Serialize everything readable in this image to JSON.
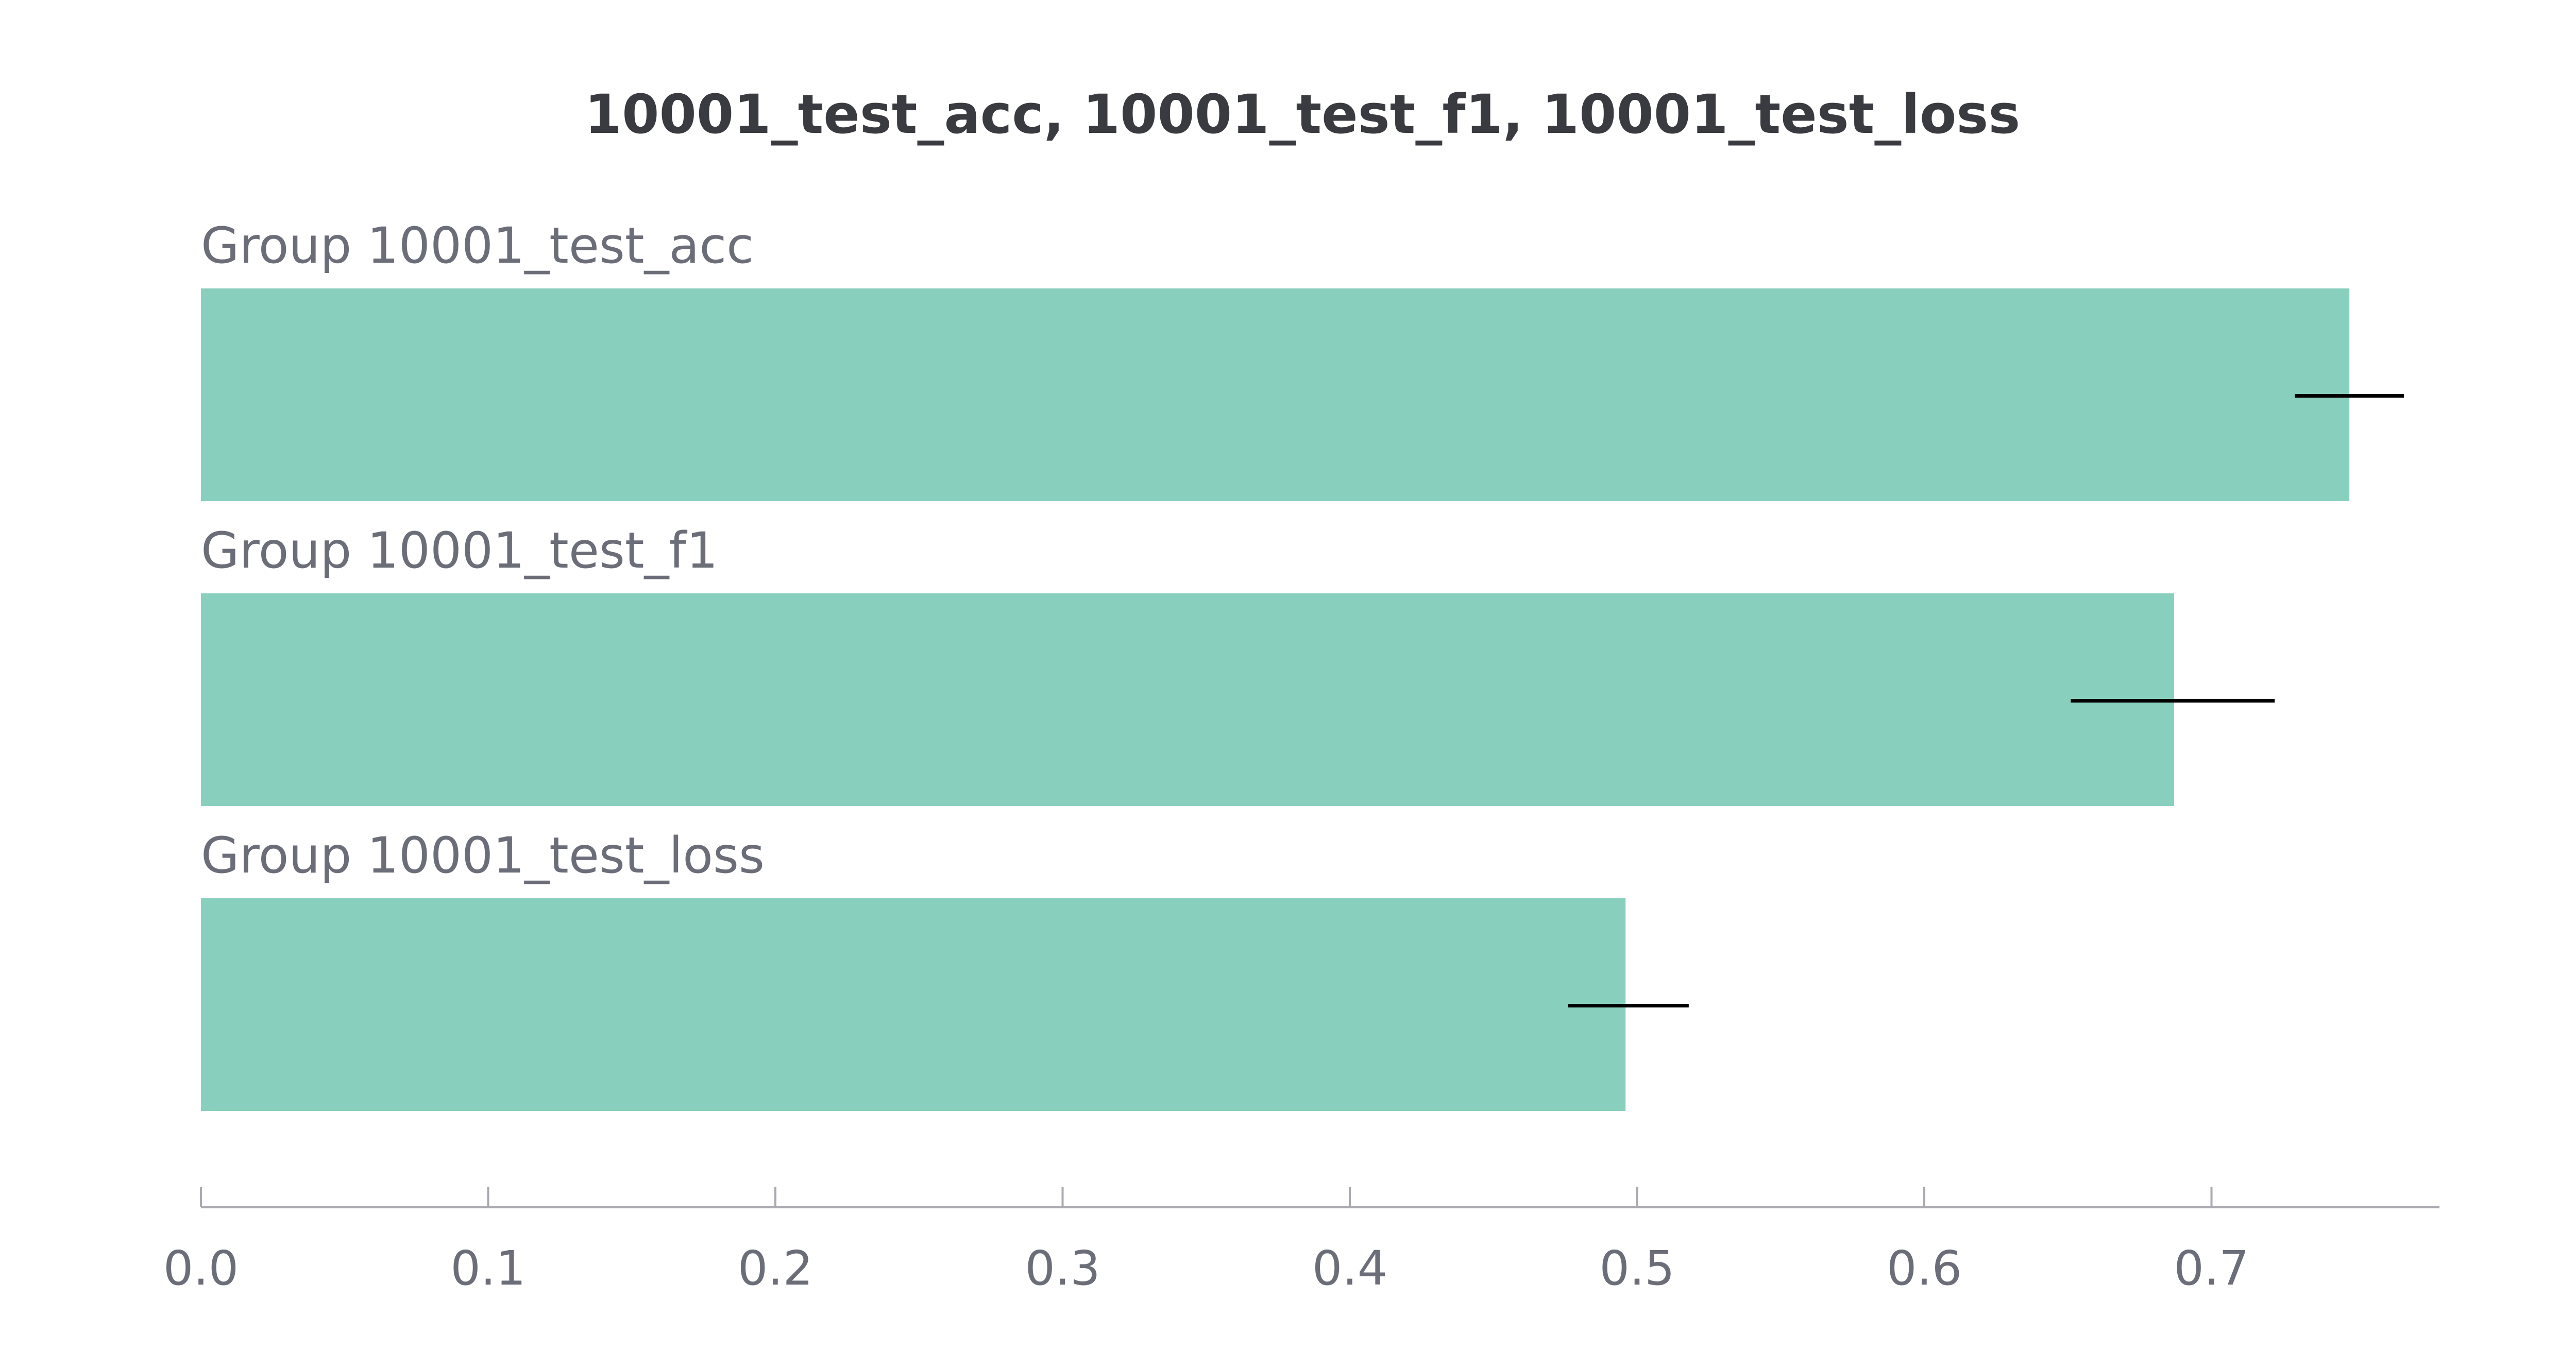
{
  "chart_data": {
    "type": "bar",
    "orientation": "horizontal",
    "title": "10001_test_acc, 10001_test_f1, 10001_test_loss",
    "group_label_prefix": "Group ",
    "categories": [
      "10001_test_acc",
      "10001_test_f1",
      "10001_test_loss"
    ],
    "values": [
      0.748,
      0.687,
      0.496
    ],
    "error_bars": [
      {
        "low": 0.729,
        "high": 0.767
      },
      {
        "low": 0.651,
        "high": 0.722
      },
      {
        "low": 0.476,
        "high": 0.518
      }
    ],
    "xlim": [
      0,
      0.78
    ],
    "xticks": [
      0,
      0.1,
      0.2,
      0.3,
      0.4,
      0.5,
      0.6,
      0.7
    ],
    "xtick_labels": [
      "0.0",
      "0.1",
      "0.2",
      "0.3",
      "0.4",
      "0.5",
      "0.6",
      "0.7"
    ],
    "xlabel": "",
    "ylabel": "",
    "grid": false,
    "legend": "none",
    "colors": {
      "bar": "#88cfbe",
      "error_bar": "#000000",
      "axis": "#a9aab0",
      "title": "#3a3b40",
      "label": "#6b6d78"
    }
  }
}
